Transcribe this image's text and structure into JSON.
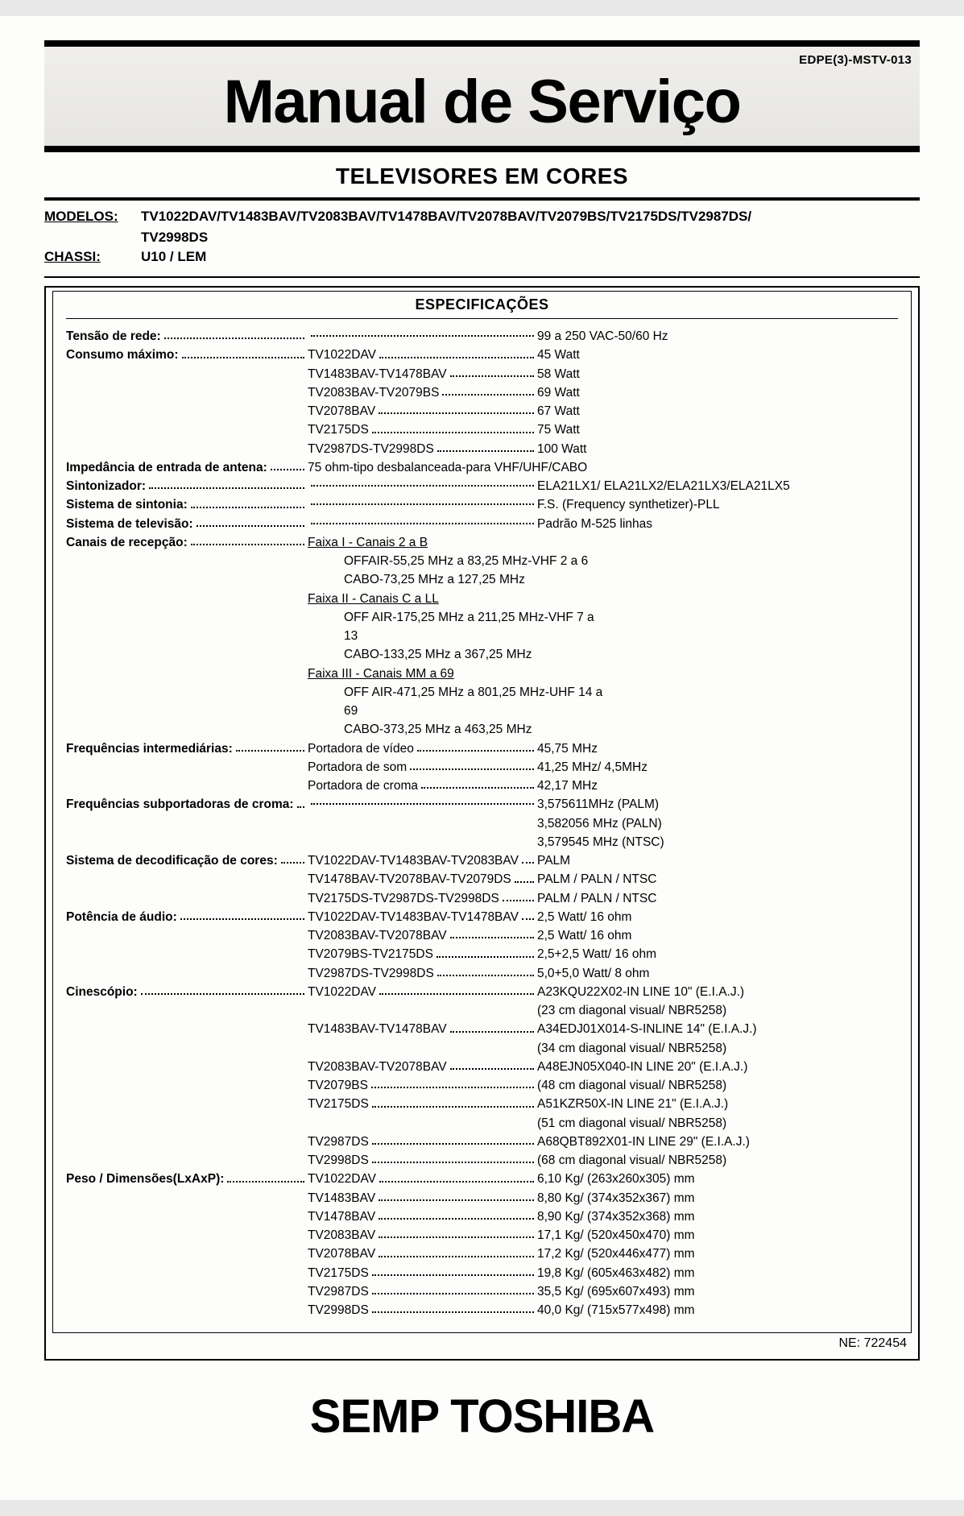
{
  "docid": "EDPE(3)-MSTV-013",
  "title": "Manual de Serviço",
  "subtitle": "TELEVISORES EM CORES",
  "modelos_label": "MODELOS:",
  "modelos": "TV1022DAV/TV1483BAV/TV2083BAV/TV1478BAV/TV2078BAV/TV2079BS/TV2175DS/TV2987DS/",
  "modelos2": "TV2998DS",
  "chassi_label": "CHASSI:",
  "chassi": "U10 / LEM",
  "spec_title": "ESPECIFICAÇÕES",
  "sections": {
    "tensao": {
      "label": "Tensão de rede:",
      "value": "99 a 250 VAC-50/60 Hz"
    },
    "consumo": {
      "label": "Consumo máximo:",
      "rows": [
        {
          "m": "TV1022DAV",
          "v": "45 Watt"
        },
        {
          "m": "TV1483BAV-TV1478BAV",
          "v": "58 Watt"
        },
        {
          "m": "TV2083BAV-TV2079BS",
          "v": "69 Watt"
        },
        {
          "m": "TV2078BAV",
          "v": "67 Watt"
        },
        {
          "m": "TV2175DS",
          "v": "75 Watt"
        },
        {
          "m": "TV2987DS-TV2998DS",
          "v": "100 Watt"
        }
      ]
    },
    "impedancia": {
      "label": "Impedância de entrada de antena:",
      "value": "75 ohm-tipo desbalanceada-para VHF/UHF/CABO"
    },
    "sintonizador": {
      "label": "Sintonizador:",
      "value": "ELA21LX1/ ELA21LX2/ELA21LX3/ELA21LX5"
    },
    "sintonia": {
      "label": "Sistema de sintonia:",
      "value": "F.S. (Frequency synthetizer)-PLL"
    },
    "televisao": {
      "label": "Sistema de televisão:",
      "value": "Padrão M-525 linhas"
    },
    "canais": {
      "label": "Canais de recepção:",
      "f1": "Faixa I - Canais 2 a B",
      "f1a": "OFFAIR-55,25 MHz a 83,25 MHz-VHF 2 a 6",
      "f1b": "CABO-73,25 MHz a 127,25 MHz",
      "f2": "Faixa II - Canais C a LL",
      "f2a": "OFF AIR-175,25 MHz a 211,25 MHz-VHF 7 a 13",
      "f2b": "CABO-133,25 MHz a 367,25 MHz",
      "f3": "Faixa III - Canais MM a 69",
      "f3a": "OFF AIR-471,25 MHz a 801,25 MHz-UHF 14 a 69",
      "f3b": "CABO-373,25 MHz a 463,25 MHz"
    },
    "fi": {
      "label": "Frequências intermediárias:",
      "rows": [
        {
          "m": "Portadora de vídeo",
          "v": "45,75 MHz"
        },
        {
          "m": "Portadora de som",
          "v": "41,25 MHz/ 4,5MHz"
        },
        {
          "m": "Portadora de croma",
          "v": "42,17 MHz"
        }
      ]
    },
    "croma": {
      "label": "Frequências subportadoras de croma:",
      "v1": "3,575611MHz (PALM)",
      "v2": "3,582056 MHz (PALN)",
      "v3": "3,579545 MHz (NTSC)"
    },
    "decod": {
      "label": "Sistema de decodificação de cores:",
      "rows": [
        {
          "m": "TV1022DAV-TV1483BAV-TV2083BAV",
          "v": "PALM"
        },
        {
          "m": "TV1478BAV-TV2078BAV-TV2079DS",
          "v": "PALM / PALN / NTSC"
        },
        {
          "m": "TV2175DS-TV2987DS-TV2998DS",
          "v": "PALM / PALN / NTSC"
        }
      ]
    },
    "audio": {
      "label": "Potência de áudio:",
      "rows": [
        {
          "m": "TV1022DAV-TV1483BAV-TV1478BAV",
          "v": "2,5 Watt/ 16 ohm"
        },
        {
          "m": "TV2083BAV-TV2078BAV",
          "v": "2,5 Watt/  16 ohm"
        },
        {
          "m": "TV2079BS-TV2175DS",
          "v": "2,5+2,5 Watt/ 16 ohm"
        },
        {
          "m": "TV2987DS-TV2998DS",
          "v": "5,0+5,0 Watt/  8 ohm"
        }
      ]
    },
    "cine": {
      "label": "Cinescópio:",
      "rows": [
        {
          "m": "TV1022DAV",
          "v": "A23KQU22X02-IN LINE 10\" (E.I.A.J.)"
        },
        {
          "m": "",
          "v": "(23 cm diagonal visual/ NBR5258)"
        },
        {
          "m": "TV1483BAV-TV1478BAV",
          "v": "A34EDJ01X014-S-INLINE 14\" (E.I.A.J.)"
        },
        {
          "m": "",
          "v": "(34 cm diagonal visual/ NBR5258)"
        },
        {
          "m": "TV2083BAV-TV2078BAV",
          "v": "A48EJN05X040-IN LINE 20\" (E.I.A.J.)"
        },
        {
          "m": "TV2079BS",
          "v": "(48 cm diagonal visual/ NBR5258)"
        },
        {
          "m": "TV2175DS",
          "v": "A51KZR50X-IN LINE 21\" (E.I.A.J.)"
        },
        {
          "m": "",
          "v": "(51 cm diagonal visual/ NBR5258)"
        },
        {
          "m": "TV2987DS",
          "v": "A68QBT892X01-IN LINE 29\" (E.I.A.J.)"
        },
        {
          "m": "TV2998DS",
          "v": "(68 cm diagonal visual/ NBR5258)"
        }
      ]
    },
    "peso": {
      "label": "Peso / Dimensões(LxAxP):",
      "rows": [
        {
          "m": "TV1022DAV",
          "v": "6,10 Kg/ (263x260x305) mm"
        },
        {
          "m": "TV1483BAV",
          "v": "8,80 Kg/ (374x352x367) mm"
        },
        {
          "m": "TV1478BAV",
          "v": "8,90 Kg/ (374x352x368) mm"
        },
        {
          "m": "TV2083BAV",
          "v": "17,1 Kg/ (520x450x470) mm"
        },
        {
          "m": "TV2078BAV",
          "v": "17,2 Kg/ (520x446x477) mm"
        },
        {
          "m": "TV2175DS",
          "v": "19,8 Kg/ (605x463x482) mm"
        },
        {
          "m": "TV2987DS",
          "v": "35,5 Kg/ (695x607x493) mm"
        },
        {
          "m": "TV2998DS",
          "v": "40,0 Kg/ (715x577x498) mm"
        }
      ]
    }
  },
  "ne": "NE: 722454",
  "brand": "SEMP TOSHIBA"
}
